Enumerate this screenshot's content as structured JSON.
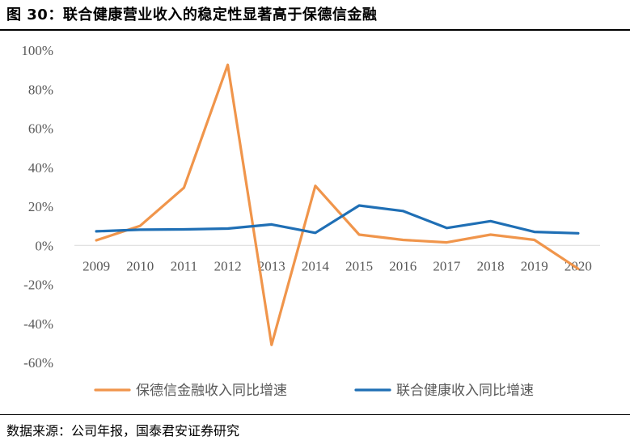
{
  "figure": {
    "title": "图 30：联合健康营业收入的稳定性显著高于保德信金融",
    "source": "数据来源：公司年报，国泰君安证券研究"
  },
  "chart_data": {
    "type": "line",
    "title": "",
    "xlabel": "",
    "ylabel": "",
    "categories": [
      "2009",
      "2010",
      "2011",
      "2012",
      "2013",
      "2014",
      "2015",
      "2016",
      "2017",
      "2018",
      "2019",
      "2020"
    ],
    "ylim": [
      -0.6,
      1.0
    ],
    "yticks": [
      1.0,
      0.8,
      0.6,
      0.4,
      0.2,
      0.0,
      -0.2,
      -0.4,
      -0.6
    ],
    "ytick_labels": [
      "100%",
      "80%",
      "60%",
      "40%",
      "20%",
      "0%",
      "-20%",
      "-40%",
      "-60%"
    ],
    "grid": false,
    "legend_position": "bottom",
    "series": [
      {
        "name": "保德信金融收入同比增速",
        "color": "#F0954B",
        "values": [
          0.026,
          0.1,
          0.295,
          0.925,
          -0.51,
          0.305,
          0.055,
          0.028,
          0.015,
          0.055,
          0.028,
          -0.12
        ]
      },
      {
        "name": "联合健康收入同比增速",
        "color": "#1F6FB5",
        "values": [
          0.072,
          0.08,
          0.082,
          0.086,
          0.107,
          0.064,
          0.204,
          0.176,
          0.089,
          0.124,
          0.069,
          0.062
        ]
      }
    ]
  }
}
